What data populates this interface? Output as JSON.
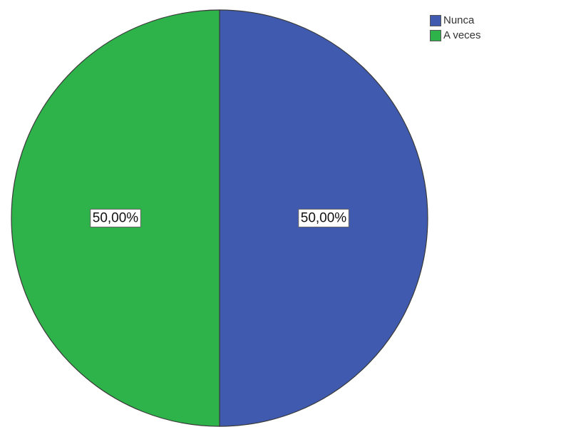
{
  "chart_data": {
    "type": "pie",
    "categories": [
      "Nunca",
      "A veces"
    ],
    "values": [
      50,
      50
    ],
    "data_labels": [
      "50,00%",
      "50,00%"
    ],
    "colors": [
      "#3F5AAE",
      "#2DB34A"
    ],
    "start_angle_deg": 0,
    "direction": "clockwise",
    "legend_position": "top-right",
    "title": ""
  },
  "legend": {
    "items": [
      {
        "label": "Nunca",
        "color": "#3F5AAE"
      },
      {
        "label": "A veces",
        "color": "#2DB34A"
      }
    ]
  }
}
